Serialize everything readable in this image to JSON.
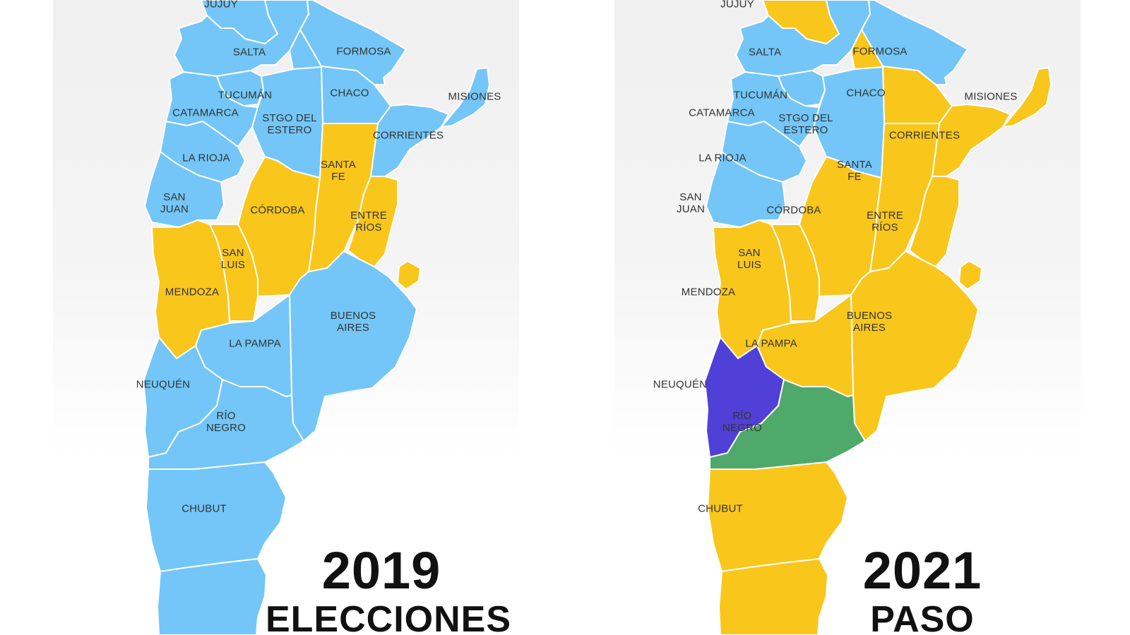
{
  "maps": [
    {
      "year": "2019",
      "subtitle": "ELECCIONES",
      "labels": {
        "jujuy": "JUJUY",
        "salta": "SALTA",
        "formosa": "FORMOSA",
        "chaco": "CHACO",
        "misiones": "MISIONES",
        "tucuman": "TUCUMÁN",
        "catamarca": "CATAMARCA",
        "stgo_line1": "STGO DEL",
        "stgo_line2": "ESTERO",
        "corrientes": "CORRIENTES",
        "larioja": "LA RIOJA",
        "santafe_line1": "SANTA",
        "santafe_line2": "FE",
        "sanjuan_line1": "SAN",
        "sanjuan_line2": "JUAN",
        "cordoba": "CÓRDOBA",
        "entrerios_line1": "ENTRE",
        "entrerios_line2": "RÍOS",
        "sanluis_line1": "SAN",
        "sanluis_line2": "LUIS",
        "mendoza": "MENDOZA",
        "bsas_line1": "BUENOS",
        "bsas_line2": "AIRES",
        "lapampa": "LA PAMPA",
        "neuquen": "NEUQUÉN",
        "rionegro_line1": "RÍO",
        "rionegro_line2": "NEGRO",
        "chubut": "CHUBUT"
      },
      "colors": {
        "jujuy": "#73c6f7",
        "salta": "#73c6f7",
        "formosa": "#73c6f7",
        "chaco": "#73c6f7",
        "misiones": "#73c6f7",
        "tucuman": "#73c6f7",
        "catamarca": "#73c6f7",
        "stgo": "#73c6f7",
        "corrientes": "#73c6f7",
        "larioja": "#73c6f7",
        "santafe": "#f9c61c",
        "sanjuan": "#73c6f7",
        "cordoba": "#f9c61c",
        "entrerios": "#f9c61c",
        "caba": "#f9c61c",
        "sanluis": "#f9c61c",
        "mendoza": "#f9c61c",
        "bsas": "#73c6f7",
        "lapampa": "#73c6f7",
        "neuquen": "#73c6f7",
        "rionegro": "#73c6f7",
        "chubut": "#73c6f7",
        "santacruz": "#73c6f7"
      }
    },
    {
      "year": "2021",
      "subtitle": "PASO",
      "labels": {
        "jujuy": "JUJUY",
        "salta": "SALTA",
        "formosa": "FORMOSA",
        "chaco": "CHACO",
        "misiones": "MISIONES",
        "tucuman": "TUCUMÁN",
        "catamarca": "CATAMARCA",
        "stgo_line1": "STGO DEL",
        "stgo_line2": "ESTERO",
        "corrientes": "CORRIENTES",
        "larioja": "LA RIOJA",
        "santafe_line1": "SANTA",
        "santafe_line2": "FE",
        "sanjuan_line1": "SAN",
        "sanjuan_line2": "JUAN",
        "cordoba": "CÓRDOBA",
        "entrerios_line1": "ENTRE",
        "entrerios_line2": "RÍOS",
        "sanluis_line1": "SAN",
        "sanluis_line2": "LUIS",
        "mendoza": "MENDOZA",
        "bsas_line1": "BUENOS",
        "bsas_line2": "AIRES",
        "lapampa": "LA PAMPA",
        "neuquen": "NEUQUÉN",
        "rionegro_line1": "RÍO",
        "rionegro_line2": "NEGRO",
        "chubut": "CHUBUT"
      },
      "colors": {
        "jujuy": "#f9c61c",
        "salta": "#73c6f7",
        "formosa": "#73c6f7",
        "chaco": "#f9c61c",
        "misiones": "#f9c61c",
        "tucuman": "#73c6f7",
        "catamarca": "#73c6f7",
        "stgo": "#73c6f7",
        "corrientes": "#f9c61c",
        "larioja": "#73c6f7",
        "santafe": "#f9c61c",
        "sanjuan": "#73c6f7",
        "cordoba": "#f9c61c",
        "entrerios": "#f9c61c",
        "caba": "#f9c61c",
        "sanluis": "#f9c61c",
        "mendoza": "#f9c61c",
        "bsas": "#f9c61c",
        "lapampa": "#f9c61c",
        "neuquen": "#5040d8",
        "rionegro": "#4ea96b",
        "chubut": "#f9c61c",
        "santacruz": "#f9c61c"
      }
    }
  ]
}
